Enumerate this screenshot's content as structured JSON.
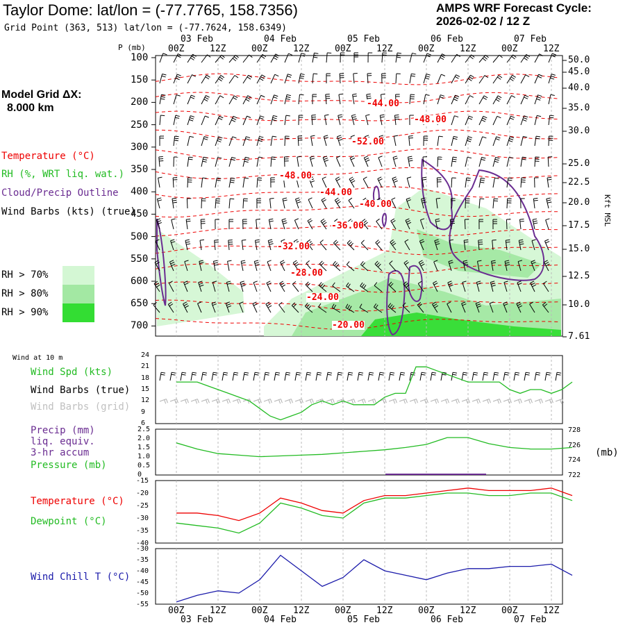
{
  "header": {
    "title": "Taylor Dome:  lat/lon = (-77.7765, 158.7356)",
    "grid_point": "Grid Point (363, 513) lat/lon = (-77.7624, 158.6349)",
    "cycle_line1": "AMPS WRF Forecast Cycle:",
    "cycle_line2": "2026-02-02 / 12  Z"
  },
  "side": {
    "grid_dx_label": "Model Grid ΔX:",
    "grid_dx_value": "8.000 km",
    "temperature_label": "Temperature (°C)",
    "rh_label": "RH (%, WRT liq. wat.)",
    "cloud_label": "Cloud/Precip Outline",
    "wind_label": "Wind Barbs (kts) (true)",
    "rh70": "RH > 70%",
    "rh80": "RH > 80%",
    "rh90": "RH > 90%",
    "kft_label": "Kft MSL",
    "p_label": "P (mb)"
  },
  "colors": {
    "temperature": "#ee0000",
    "rh": "#22bb22",
    "cloud": "#6a2c91",
    "wind": "#000000",
    "wind_grid": "#b0b0b0",
    "wind_chill": "#1a1aaa",
    "rh70": "#d4f7d4",
    "rh80": "#a3e8a3",
    "rh90": "#33dd33"
  },
  "time_axis": {
    "tick_labels": [
      "00Z",
      "12Z",
      "00Z",
      "12Z",
      "00Z",
      "12Z",
      "00Z",
      "12Z",
      "00Z",
      "12Z"
    ],
    "date_labels": [
      "03 Feb",
      "04 Feb",
      "05 Feb",
      "06 Feb",
      "07 Feb"
    ]
  },
  "pressure_axis": {
    "levels": [
      "100",
      "150",
      "200",
      "250",
      "300",
      "350",
      "400",
      "450",
      "500",
      "550",
      "600",
      "650",
      "700"
    ],
    "kft": [
      "50.0",
      "45.0",
      "40.0",
      "35.0",
      "30.0",
      "25.0",
      "22.5",
      "20.0",
      "17.5",
      "15.0",
      "12.5",
      "10.0",
      "7.61"
    ]
  },
  "temperature_contours": [
    "-44.00",
    "-48.00",
    "-52.00",
    "-48.00",
    "-44.00",
    "-40.00",
    "-36.00",
    "-32.00",
    "-28.00",
    "-24.00",
    "-20.00"
  ],
  "surface": {
    "wind_at_10m": "Wind at 10 m",
    "wind_spd_label": "Wind Spd (kts)",
    "wind_barbs_true_label": "Wind Barbs (true)",
    "wind_barbs_grid_label": "Wind Barbs (grid)",
    "wind_ticks": [
      "24",
      "21",
      "18",
      "15",
      "12",
      "9",
      "6"
    ],
    "precip_label": "Precip (mm)",
    "liq_equiv_label": "liq. equiv.",
    "accum_label": "3-hr accum",
    "pressure_label": "Pressure (mb)",
    "precip_ticks": [
      "2.5",
      "2.0",
      "1.5",
      "1.0",
      "0.5",
      "0"
    ],
    "pressure_ticks": [
      "728",
      "726",
      "724",
      "722"
    ],
    "mb_label": "(mb)",
    "temp_label": "Temperature (°C)",
    "dewpoint_label": "Dewpoint (°C)",
    "temp_ticks": [
      "-15",
      "-20",
      "-25",
      "-30",
      "-35",
      "-40"
    ],
    "windchill_label": "Wind Chill T (°C)",
    "windchill_ticks": [
      "-30",
      "-35",
      "-40",
      "-45",
      "-50",
      "-55"
    ]
  },
  "chart_data": [
    {
      "type": "line",
      "title": "Wind Spd (kts)",
      "x_unit": "forecast hour",
      "xlim": [
        0,
        114
      ],
      "ylim": [
        6,
        24
      ],
      "x": [
        0,
        3,
        6,
        9,
        12,
        15,
        18,
        21,
        24,
        27,
        30,
        33,
        36,
        39,
        42,
        45,
        48,
        51,
        54,
        57,
        60,
        63,
        66,
        69,
        72,
        75,
        78,
        81,
        84,
        87,
        90,
        93,
        96,
        99,
        102,
        105,
        108,
        111,
        114
      ],
      "series": [
        {
          "name": "Wind Spd",
          "values": [
            17,
            17,
            17,
            16,
            15,
            14,
            13,
            12,
            10,
            8,
            7,
            8,
            9,
            11,
            12,
            11,
            12,
            11,
            11,
            11,
            13,
            14,
            14,
            21,
            21,
            20,
            19,
            18,
            17,
            17,
            17,
            17,
            15,
            14,
            15,
            15,
            14,
            15,
            17
          ]
        }
      ]
    },
    {
      "type": "line",
      "title": "Pressure (mb)",
      "ylim": [
        722,
        728
      ],
      "x": [
        0,
        6,
        12,
        18,
        24,
        30,
        36,
        42,
        48,
        54,
        60,
        66,
        72,
        78,
        84,
        90,
        96,
        102,
        108,
        114
      ],
      "series": [
        {
          "name": "Pressure",
          "values": [
            726.2,
            725.4,
            724.8,
            724.6,
            724.4,
            724.5,
            724.6,
            724.7,
            724.9,
            725.1,
            725.3,
            725.6,
            726.0,
            726.9,
            726.9,
            726.1,
            725.6,
            725.4,
            725.4,
            725.6
          ]
        }
      ]
    },
    {
      "type": "line",
      "title": "Temperature / Dewpoint (°C)",
      "ylim": [
        -40,
        -15
      ],
      "x": [
        0,
        6,
        12,
        18,
        24,
        30,
        36,
        42,
        48,
        54,
        60,
        66,
        72,
        78,
        84,
        90,
        96,
        102,
        108,
        114
      ],
      "series": [
        {
          "name": "Temperature",
          "values": [
            -28,
            -28,
            -29,
            -31,
            -28,
            -22,
            -24,
            -27,
            -28,
            -23,
            -21,
            -21,
            -20,
            -19,
            -18,
            -19,
            -19,
            -19,
            -18,
            -21
          ]
        },
        {
          "name": "Dewpoint",
          "values": [
            -32,
            -33,
            -34,
            -36,
            -32,
            -24,
            -26,
            -29,
            -30,
            -24,
            -22,
            -22,
            -21,
            -20,
            -20,
            -21,
            -21,
            -20,
            -20,
            -23
          ]
        }
      ]
    },
    {
      "type": "line",
      "title": "Wind Chill T (°C)",
      "ylim": [
        -55,
        -30
      ],
      "x": [
        0,
        6,
        12,
        18,
        24,
        30,
        36,
        42,
        48,
        54,
        60,
        66,
        72,
        78,
        84,
        90,
        96,
        102,
        108,
        114
      ],
      "series": [
        {
          "name": "Wind Chill",
          "values": [
            -54,
            -51,
            -49,
            -50,
            -44,
            -33,
            -40,
            -47,
            -43,
            -35,
            -40,
            -42,
            -44,
            -41,
            -39,
            -39,
            -38,
            -38,
            -37,
            -42
          ]
        }
      ]
    }
  ]
}
